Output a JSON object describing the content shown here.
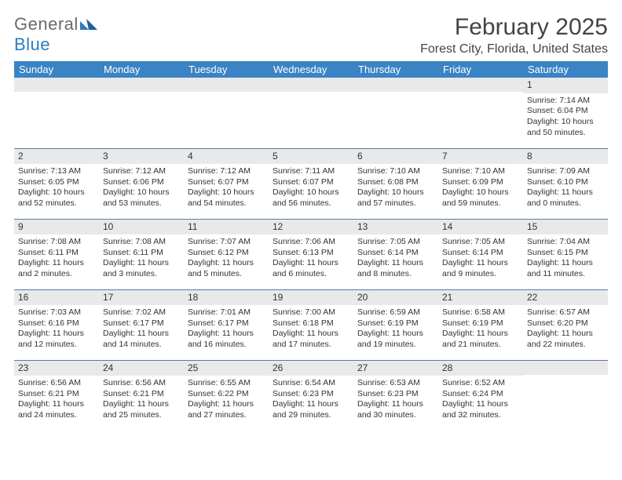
{
  "brand": {
    "word1": "General",
    "word2": "Blue",
    "color_general": "#6b6b6b",
    "color_blue": "#2b7bbf"
  },
  "title": {
    "month": "February 2025",
    "location": "Forest City, Florida, United States"
  },
  "colors": {
    "header_bg": "#3a83c4",
    "header_fg": "#ffffff",
    "daynum_bg": "#e9e9e9",
    "rule": "#5a7ca0"
  },
  "weekdays": [
    "Sunday",
    "Monday",
    "Tuesday",
    "Wednesday",
    "Thursday",
    "Friday",
    "Saturday"
  ],
  "weeks": [
    [
      {
        "n": "",
        "lines": []
      },
      {
        "n": "",
        "lines": []
      },
      {
        "n": "",
        "lines": []
      },
      {
        "n": "",
        "lines": []
      },
      {
        "n": "",
        "lines": []
      },
      {
        "n": "",
        "lines": []
      },
      {
        "n": "1",
        "lines": [
          "Sunrise: 7:14 AM",
          "Sunset: 6:04 PM",
          "Daylight: 10 hours and 50 minutes."
        ]
      }
    ],
    [
      {
        "n": "2",
        "lines": [
          "Sunrise: 7:13 AM",
          "Sunset: 6:05 PM",
          "Daylight: 10 hours and 52 minutes."
        ]
      },
      {
        "n": "3",
        "lines": [
          "Sunrise: 7:12 AM",
          "Sunset: 6:06 PM",
          "Daylight: 10 hours and 53 minutes."
        ]
      },
      {
        "n": "4",
        "lines": [
          "Sunrise: 7:12 AM",
          "Sunset: 6:07 PM",
          "Daylight: 10 hours and 54 minutes."
        ]
      },
      {
        "n": "5",
        "lines": [
          "Sunrise: 7:11 AM",
          "Sunset: 6:07 PM",
          "Daylight: 10 hours and 56 minutes."
        ]
      },
      {
        "n": "6",
        "lines": [
          "Sunrise: 7:10 AM",
          "Sunset: 6:08 PM",
          "Daylight: 10 hours and 57 minutes."
        ]
      },
      {
        "n": "7",
        "lines": [
          "Sunrise: 7:10 AM",
          "Sunset: 6:09 PM",
          "Daylight: 10 hours and 59 minutes."
        ]
      },
      {
        "n": "8",
        "lines": [
          "Sunrise: 7:09 AM",
          "Sunset: 6:10 PM",
          "Daylight: 11 hours and 0 minutes."
        ]
      }
    ],
    [
      {
        "n": "9",
        "lines": [
          "Sunrise: 7:08 AM",
          "Sunset: 6:11 PM",
          "Daylight: 11 hours and 2 minutes."
        ]
      },
      {
        "n": "10",
        "lines": [
          "Sunrise: 7:08 AM",
          "Sunset: 6:11 PM",
          "Daylight: 11 hours and 3 minutes."
        ]
      },
      {
        "n": "11",
        "lines": [
          "Sunrise: 7:07 AM",
          "Sunset: 6:12 PM",
          "Daylight: 11 hours and 5 minutes."
        ]
      },
      {
        "n": "12",
        "lines": [
          "Sunrise: 7:06 AM",
          "Sunset: 6:13 PM",
          "Daylight: 11 hours and 6 minutes."
        ]
      },
      {
        "n": "13",
        "lines": [
          "Sunrise: 7:05 AM",
          "Sunset: 6:14 PM",
          "Daylight: 11 hours and 8 minutes."
        ]
      },
      {
        "n": "14",
        "lines": [
          "Sunrise: 7:05 AM",
          "Sunset: 6:14 PM",
          "Daylight: 11 hours and 9 minutes."
        ]
      },
      {
        "n": "15",
        "lines": [
          "Sunrise: 7:04 AM",
          "Sunset: 6:15 PM",
          "Daylight: 11 hours and 11 minutes."
        ]
      }
    ],
    [
      {
        "n": "16",
        "lines": [
          "Sunrise: 7:03 AM",
          "Sunset: 6:16 PM",
          "Daylight: 11 hours and 12 minutes."
        ]
      },
      {
        "n": "17",
        "lines": [
          "Sunrise: 7:02 AM",
          "Sunset: 6:17 PM",
          "Daylight: 11 hours and 14 minutes."
        ]
      },
      {
        "n": "18",
        "lines": [
          "Sunrise: 7:01 AM",
          "Sunset: 6:17 PM",
          "Daylight: 11 hours and 16 minutes."
        ]
      },
      {
        "n": "19",
        "lines": [
          "Sunrise: 7:00 AM",
          "Sunset: 6:18 PM",
          "Daylight: 11 hours and 17 minutes."
        ]
      },
      {
        "n": "20",
        "lines": [
          "Sunrise: 6:59 AM",
          "Sunset: 6:19 PM",
          "Daylight: 11 hours and 19 minutes."
        ]
      },
      {
        "n": "21",
        "lines": [
          "Sunrise: 6:58 AM",
          "Sunset: 6:19 PM",
          "Daylight: 11 hours and 21 minutes."
        ]
      },
      {
        "n": "22",
        "lines": [
          "Sunrise: 6:57 AM",
          "Sunset: 6:20 PM",
          "Daylight: 11 hours and 22 minutes."
        ]
      }
    ],
    [
      {
        "n": "23",
        "lines": [
          "Sunrise: 6:56 AM",
          "Sunset: 6:21 PM",
          "Daylight: 11 hours and 24 minutes."
        ]
      },
      {
        "n": "24",
        "lines": [
          "Sunrise: 6:56 AM",
          "Sunset: 6:21 PM",
          "Daylight: 11 hours and 25 minutes."
        ]
      },
      {
        "n": "25",
        "lines": [
          "Sunrise: 6:55 AM",
          "Sunset: 6:22 PM",
          "Daylight: 11 hours and 27 minutes."
        ]
      },
      {
        "n": "26",
        "lines": [
          "Sunrise: 6:54 AM",
          "Sunset: 6:23 PM",
          "Daylight: 11 hours and 29 minutes."
        ]
      },
      {
        "n": "27",
        "lines": [
          "Sunrise: 6:53 AM",
          "Sunset: 6:23 PM",
          "Daylight: 11 hours and 30 minutes."
        ]
      },
      {
        "n": "28",
        "lines": [
          "Sunrise: 6:52 AM",
          "Sunset: 6:24 PM",
          "Daylight: 11 hours and 32 minutes."
        ]
      },
      {
        "n": "",
        "lines": []
      }
    ]
  ]
}
